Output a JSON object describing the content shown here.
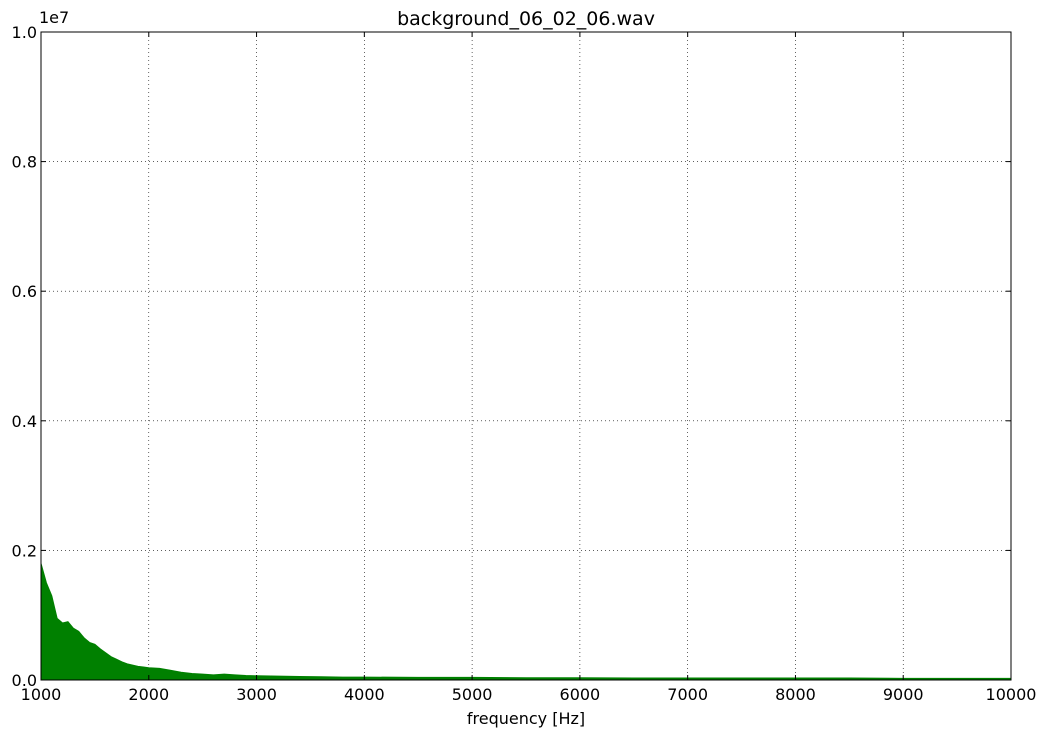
{
  "chart_data": {
    "type": "area",
    "title": "background_06_02_06.wav",
    "xlabel": "frequency [Hz]",
    "ylabel": "",
    "y_offset_label": "1e7",
    "xlim": [
      1000,
      10000
    ],
    "ylim": [
      0,
      1.0
    ],
    "y_scale": 10000000,
    "x_ticks": [
      1000,
      2000,
      3000,
      4000,
      5000,
      6000,
      7000,
      8000,
      9000,
      10000
    ],
    "x_tick_labels": [
      "1000",
      "2000",
      "3000",
      "4000",
      "5000",
      "6000",
      "7000",
      "8000",
      "9000",
      "10000"
    ],
    "y_ticks": [
      0.0,
      0.2,
      0.4,
      0.6,
      0.8,
      1.0
    ],
    "y_tick_labels": [
      "0.0",
      "0.2",
      "0.4",
      "0.6",
      "0.8",
      "1.0"
    ],
    "grid": true,
    "legend": "none",
    "series": [
      {
        "color": "#008000",
        "x": [
          1000,
          1050,
          1100,
          1150,
          1200,
          1250,
          1300,
          1350,
          1400,
          1450,
          1500,
          1550,
          1600,
          1650,
          1700,
          1750,
          1800,
          1850,
          1900,
          1950,
          2000,
          2100,
          2200,
          2300,
          2400,
          2500,
          2600,
          2700,
          2800,
          2900,
          3000,
          3200,
          3400,
          3600,
          3800,
          4000,
          4500,
          5000,
          5500,
          6000,
          6500,
          7000,
          7500,
          8000,
          8500,
          9000,
          9500,
          10000
        ],
        "values": [
          0.18,
          0.15,
          0.13,
          0.095,
          0.088,
          0.09,
          0.08,
          0.075,
          0.065,
          0.058,
          0.055,
          0.048,
          0.042,
          0.036,
          0.032,
          0.028,
          0.025,
          0.023,
          0.021,
          0.02,
          0.019,
          0.018,
          0.015,
          0.012,
          0.01,
          0.009,
          0.008,
          0.009,
          0.008,
          0.007,
          0.0065,
          0.006,
          0.0055,
          0.005,
          0.0045,
          0.0045,
          0.004,
          0.004,
          0.0035,
          0.0035,
          0.003,
          0.003,
          0.003,
          0.003,
          0.003,
          0.0025,
          0.0025,
          0.0025
        ]
      }
    ]
  }
}
